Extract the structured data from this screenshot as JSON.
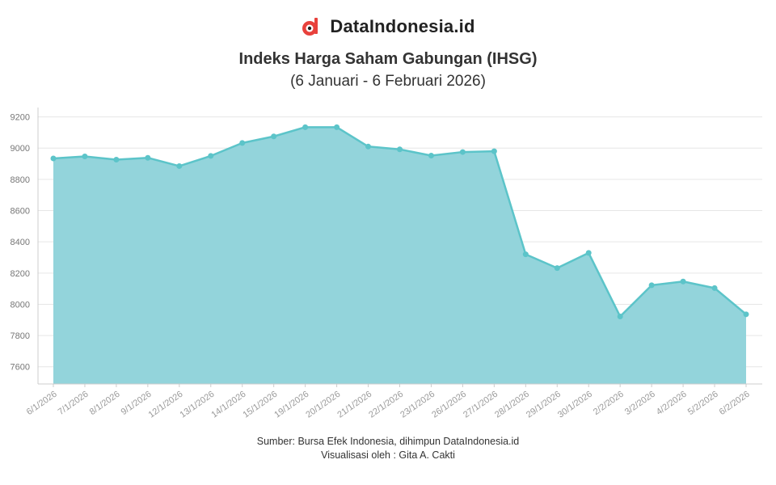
{
  "brand": {
    "name": "DataIndonesia.id",
    "logo_icon": "data-indonesia-logo-icon",
    "accent": "#e8413c"
  },
  "chart_data": {
    "type": "area",
    "title": "Indeks Harga Saham Gabungan (IHSG)",
    "subtitle": "(6 Januari - 6 Februari 2026)",
    "xlabel": "",
    "ylabel": "",
    "categories": [
      "6/1/2026",
      "7/1/2026",
      "8/1/2026",
      "9/1/2026",
      "12/1/2026",
      "13/1/2026",
      "14/1/2026",
      "15/1/2026",
      "19/1/2026",
      "20/1/2026",
      "21/1/2026",
      "22/1/2026",
      "23/1/2026",
      "26/1/2026",
      "27/1/2026",
      "28/1/2026",
      "29/1/2026",
      "30/1/2026",
      "2/2/2026",
      "3/2/2026",
      "4/2/2026",
      "5/2/2026",
      "6/2/2026"
    ],
    "series": [
      {
        "values": [
          8934,
          8947,
          8926,
          8938,
          8885,
          8950,
          9033,
          9075,
          9134,
          9134,
          9010,
          8992,
          8952,
          8975,
          8980,
          8320,
          8232,
          8329,
          7922,
          8122,
          8146,
          8104,
          7936
        ]
      }
    ],
    "yticks": [
      7600,
      7800,
      8000,
      8200,
      8400,
      8600,
      8800,
      9000,
      9200
    ],
    "ylim": [
      7490,
      9260
    ],
    "grid": true,
    "colors": {
      "line": "#5cc4c9",
      "fill": "#93d4db",
      "point": "#5cc4c9",
      "grid": "#e6e6e6"
    }
  },
  "footer": {
    "source": "Sumber: Bursa Efek Indonesia, dihimpun DataIndonesia.id",
    "credit": "Visualisasi oleh : Gita A. Cakti"
  }
}
